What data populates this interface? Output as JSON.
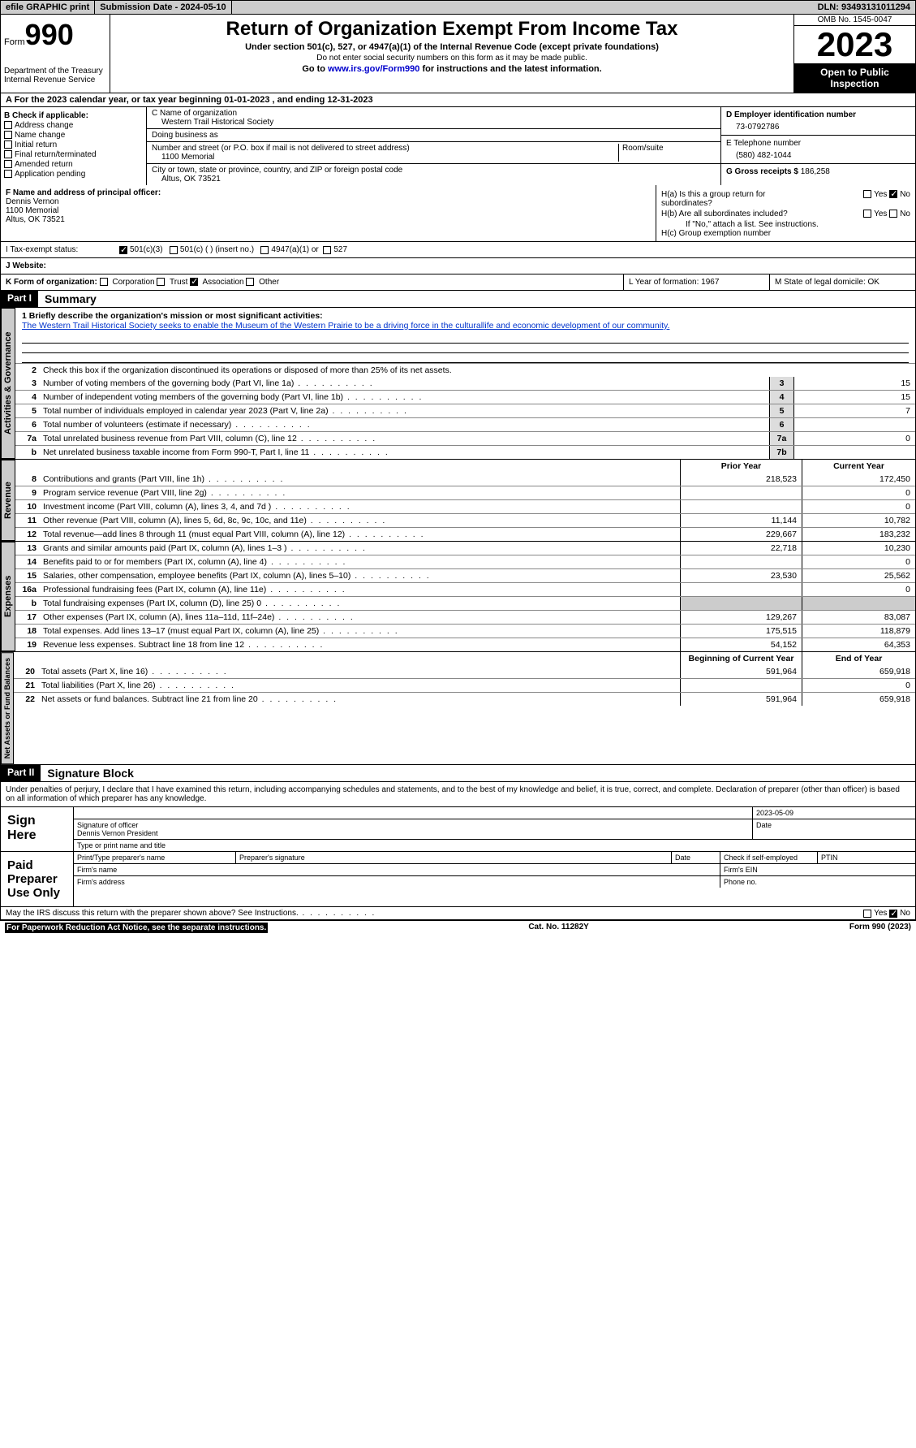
{
  "topbar": {
    "efile": "efile GRAPHIC print",
    "submission": "Submission Date - 2024-05-10",
    "dln": "DLN: 93493131011294"
  },
  "header": {
    "form_label": "Form",
    "form_num": "990",
    "dept": "Department of the Treasury",
    "irs": "Internal Revenue Service",
    "title": "Return of Organization Exempt From Income Tax",
    "sub1": "Under section 501(c), 527, or 4947(a)(1) of the Internal Revenue Code (except private foundations)",
    "sub2": "Do not enter social security numbers on this form as it may be made public.",
    "sub3_pre": "Go to ",
    "sub3_link": "www.irs.gov/Form990",
    "sub3_post": " for instructions and the latest information.",
    "omb": "OMB No. 1545-0047",
    "year": "2023",
    "inspect": "Open to Public Inspection"
  },
  "lineA": "A   For the 2023 calendar year, or tax year beginning 01-01-2023    , and ending 12-31-2023",
  "colB": {
    "label": "B Check if applicable:",
    "items": [
      "Address change",
      "Name change",
      "Initial return",
      "Final return/terminated",
      "Amended return",
      "Application pending"
    ]
  },
  "colC": {
    "name_label": "C Name of organization",
    "name": "Western Trail Historical Society",
    "dba_label": "Doing business as",
    "addr_label": "Number and street (or P.O. box if mail is not delivered to street address)",
    "addr": "1100 Memorial",
    "room_label": "Room/suite",
    "city_label": "City or town, state or province, country, and ZIP or foreign postal code",
    "city": "Altus, OK  73521"
  },
  "colD": {
    "d_label": "D Employer identification number",
    "d_val": "73-0792786",
    "e_label": "E Telephone number",
    "e_val": "(580) 482-1044",
    "g_label": "G Gross receipts $ ",
    "g_val": "186,258"
  },
  "colF": {
    "label": "F  Name and address of principal officer:",
    "name": "Dennis Vernon",
    "addr1": "1100 Memorial",
    "addr2": "Altus, OK  73521"
  },
  "colH": {
    "ha": "H(a)  Is this a group return for subordinates?",
    "hb": "H(b)  Are all subordinates included?",
    "hb_note": "If \"No,\" attach a list. See instructions.",
    "hc": "H(c)  Group exemption number",
    "yes": "Yes",
    "no": "No"
  },
  "rowI": {
    "label": "I   Tax-exempt status:",
    "o1": "501(c)(3)",
    "o2": "501(c) (  ) (insert no.)",
    "o3": "4947(a)(1) or",
    "o4": "527"
  },
  "rowJ": {
    "label": "J   Website:"
  },
  "rowK": {
    "label": "K Form of organization:",
    "o1": "Corporation",
    "o2": "Trust",
    "o3": "Association",
    "o4": "Other",
    "l": "L Year of formation: 1967",
    "m": "M State of legal domicile: OK"
  },
  "part1": {
    "tag": "Part I",
    "title": "Summary",
    "mission_label": "1  Briefly describe the organization's mission or most significant activities:",
    "mission": "The Western Trail Historical Society seeks to enable the Museum of the Western Prairie to be a driving force in the culturallife and economic development of our community.",
    "line2": "Check this box      if the organization discontinued its operations or disposed of more than 25% of its net assets.",
    "tabs": {
      "gov": "Activities & Governance",
      "rev": "Revenue",
      "exp": "Expenses",
      "net": "Net Assets or Fund Balances"
    },
    "gov_lines": [
      {
        "n": "3",
        "d": "Number of voting members of the governing body (Part VI, line 1a)",
        "b": "3",
        "v": "15"
      },
      {
        "n": "4",
        "d": "Number of independent voting members of the governing body (Part VI, line 1b)",
        "b": "4",
        "v": "15"
      },
      {
        "n": "5",
        "d": "Total number of individuals employed in calendar year 2023 (Part V, line 2a)",
        "b": "5",
        "v": "7"
      },
      {
        "n": "6",
        "d": "Total number of volunteers (estimate if necessary)",
        "b": "6",
        "v": ""
      },
      {
        "n": "7a",
        "d": "Total unrelated business revenue from Part VIII, column (C), line 12",
        "b": "7a",
        "v": "0"
      },
      {
        "n": "b",
        "d": "Net unrelated business taxable income from Form 990-T, Part I, line 11",
        "b": "7b",
        "v": ""
      }
    ],
    "col_prior": "Prior Year",
    "col_current": "Current Year",
    "rev_lines": [
      {
        "n": "8",
        "d": "Contributions and grants (Part VIII, line 1h)",
        "p": "218,523",
        "c": "172,450"
      },
      {
        "n": "9",
        "d": "Program service revenue (Part VIII, line 2g)",
        "p": "",
        "c": "0"
      },
      {
        "n": "10",
        "d": "Investment income (Part VIII, column (A), lines 3, 4, and 7d )",
        "p": "",
        "c": "0"
      },
      {
        "n": "11",
        "d": "Other revenue (Part VIII, column (A), lines 5, 6d, 8c, 9c, 10c, and 11e)",
        "p": "11,144",
        "c": "10,782"
      },
      {
        "n": "12",
        "d": "Total revenue—add lines 8 through 11 (must equal Part VIII, column (A), line 12)",
        "p": "229,667",
        "c": "183,232"
      }
    ],
    "exp_lines": [
      {
        "n": "13",
        "d": "Grants and similar amounts paid (Part IX, column (A), lines 1–3 )",
        "p": "22,718",
        "c": "10,230"
      },
      {
        "n": "14",
        "d": "Benefits paid to or for members (Part IX, column (A), line 4)",
        "p": "",
        "c": "0"
      },
      {
        "n": "15",
        "d": "Salaries, other compensation, employee benefits (Part IX, column (A), lines 5–10)",
        "p": "23,530",
        "c": "25,562"
      },
      {
        "n": "16a",
        "d": "Professional fundraising fees (Part IX, column (A), line 11e)",
        "p": "",
        "c": "0"
      },
      {
        "n": "b",
        "d": "Total fundraising expenses (Part IX, column (D), line 25) 0",
        "p": "grey",
        "c": "grey"
      },
      {
        "n": "17",
        "d": "Other expenses (Part IX, column (A), lines 11a–11d, 11f–24e)",
        "p": "129,267",
        "c": "83,087"
      },
      {
        "n": "18",
        "d": "Total expenses. Add lines 13–17 (must equal Part IX, column (A), line 25)",
        "p": "175,515",
        "c": "118,879"
      },
      {
        "n": "19",
        "d": "Revenue less expenses. Subtract line 18 from line 12",
        "p": "54,152",
        "c": "64,353"
      }
    ],
    "col_begin": "Beginning of Current Year",
    "col_end": "End of Year",
    "net_lines": [
      {
        "n": "20",
        "d": "Total assets (Part X, line 16)",
        "p": "591,964",
        "c": "659,918"
      },
      {
        "n": "21",
        "d": "Total liabilities (Part X, line 26)",
        "p": "",
        "c": "0"
      },
      {
        "n": "22",
        "d": "Net assets or fund balances. Subtract line 21 from line 20",
        "p": "591,964",
        "c": "659,918"
      }
    ]
  },
  "part2": {
    "tag": "Part II",
    "title": "Signature Block",
    "decl": "Under penalties of perjury, I declare that I have examined this return, including accompanying schedules and statements, and to the best of my knowledge and belief, it is true, correct, and complete. Declaration of preparer (other than officer) is based on all information of which preparer has any knowledge.",
    "sign_here": "Sign Here",
    "sig_officer": "Signature of officer",
    "sig_name": "Dennis Vernon  President",
    "sig_type": "Type or print name and title",
    "date_label": "Date",
    "date_val": "2023-05-09",
    "paid": "Paid Preparer Use Only",
    "pp_name": "Print/Type preparer's name",
    "pp_sig": "Preparer's signature",
    "pp_date": "Date",
    "pp_check": "Check        if self-employed",
    "pp_ptin": "PTIN",
    "firm_name": "Firm's name",
    "firm_ein": "Firm's EIN",
    "firm_addr": "Firm's address",
    "firm_phone": "Phone no."
  },
  "footer": {
    "discuss": "May the IRS discuss this return with the preparer shown above? See Instructions.",
    "yes": "Yes",
    "no": "No",
    "paperwork": "For Paperwork Reduction Act Notice, see the separate instructions.",
    "cat": "Cat. No. 11282Y",
    "form": "Form 990 (2023)"
  }
}
